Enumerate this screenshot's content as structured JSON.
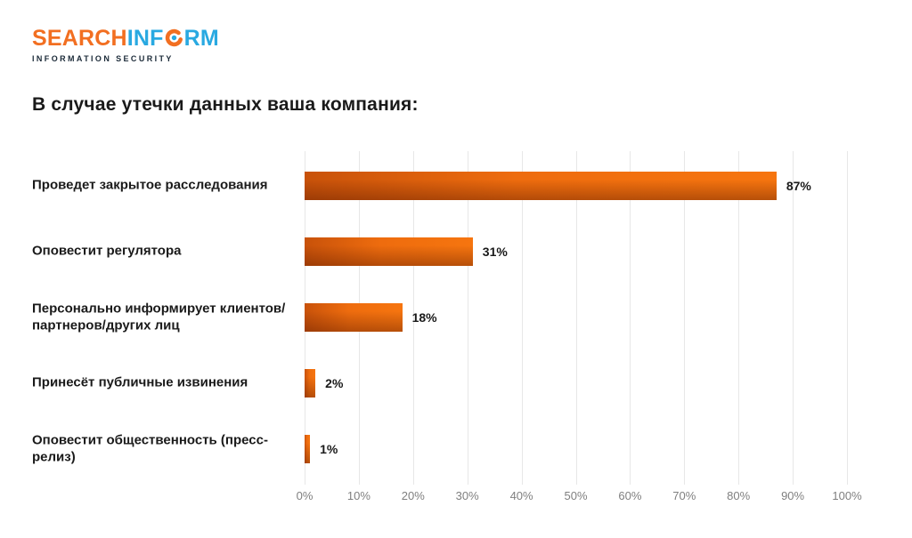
{
  "logo": {
    "text_search": "SEARCH",
    "text_inf": "INF",
    "text_rm": "RM",
    "subtitle": "INFORMATION SECURITY"
  },
  "title": "В случае утечки данных ваша компания:",
  "colors": {
    "brand_orange": "#F26F21",
    "brand_blue": "#29A9E1",
    "logo_subtitle": "#1C2B39",
    "bar_orange": "#EE6C0E",
    "bar_orange_dark": "#C8520A",
    "bar_orange_light": "#F6750F",
    "grid": "#E7E7E7",
    "tick": "#7F7F7F",
    "text": "#1A1A1A"
  },
  "chart_data": {
    "type": "bar",
    "orientation": "horizontal",
    "title": "В случае утечки данных ваша компания:",
    "categories": [
      "Проведет закрытое расследования",
      "Оповестит регулятора",
      "Персонально информирует клиентов/партнеров/других лиц",
      "Принесёт публичные извинения",
      "Оповестит общественность (пресс-релиз)"
    ],
    "values": [
      87,
      31,
      18,
      2,
      1
    ],
    "value_labels": [
      "87%",
      "31%",
      "18%",
      "2%",
      "1%"
    ],
    "x_ticks": [
      "0%",
      "10%",
      "20%",
      "30%",
      "40%",
      "50%",
      "60%",
      "70%",
      "80%",
      "90%",
      "100%"
    ],
    "xlim": [
      0,
      100
    ],
    "grid": "vertical gridlines every 10%",
    "legend": "none",
    "bar_style": "orange gradient, dark lower-left to bright upper-right"
  }
}
